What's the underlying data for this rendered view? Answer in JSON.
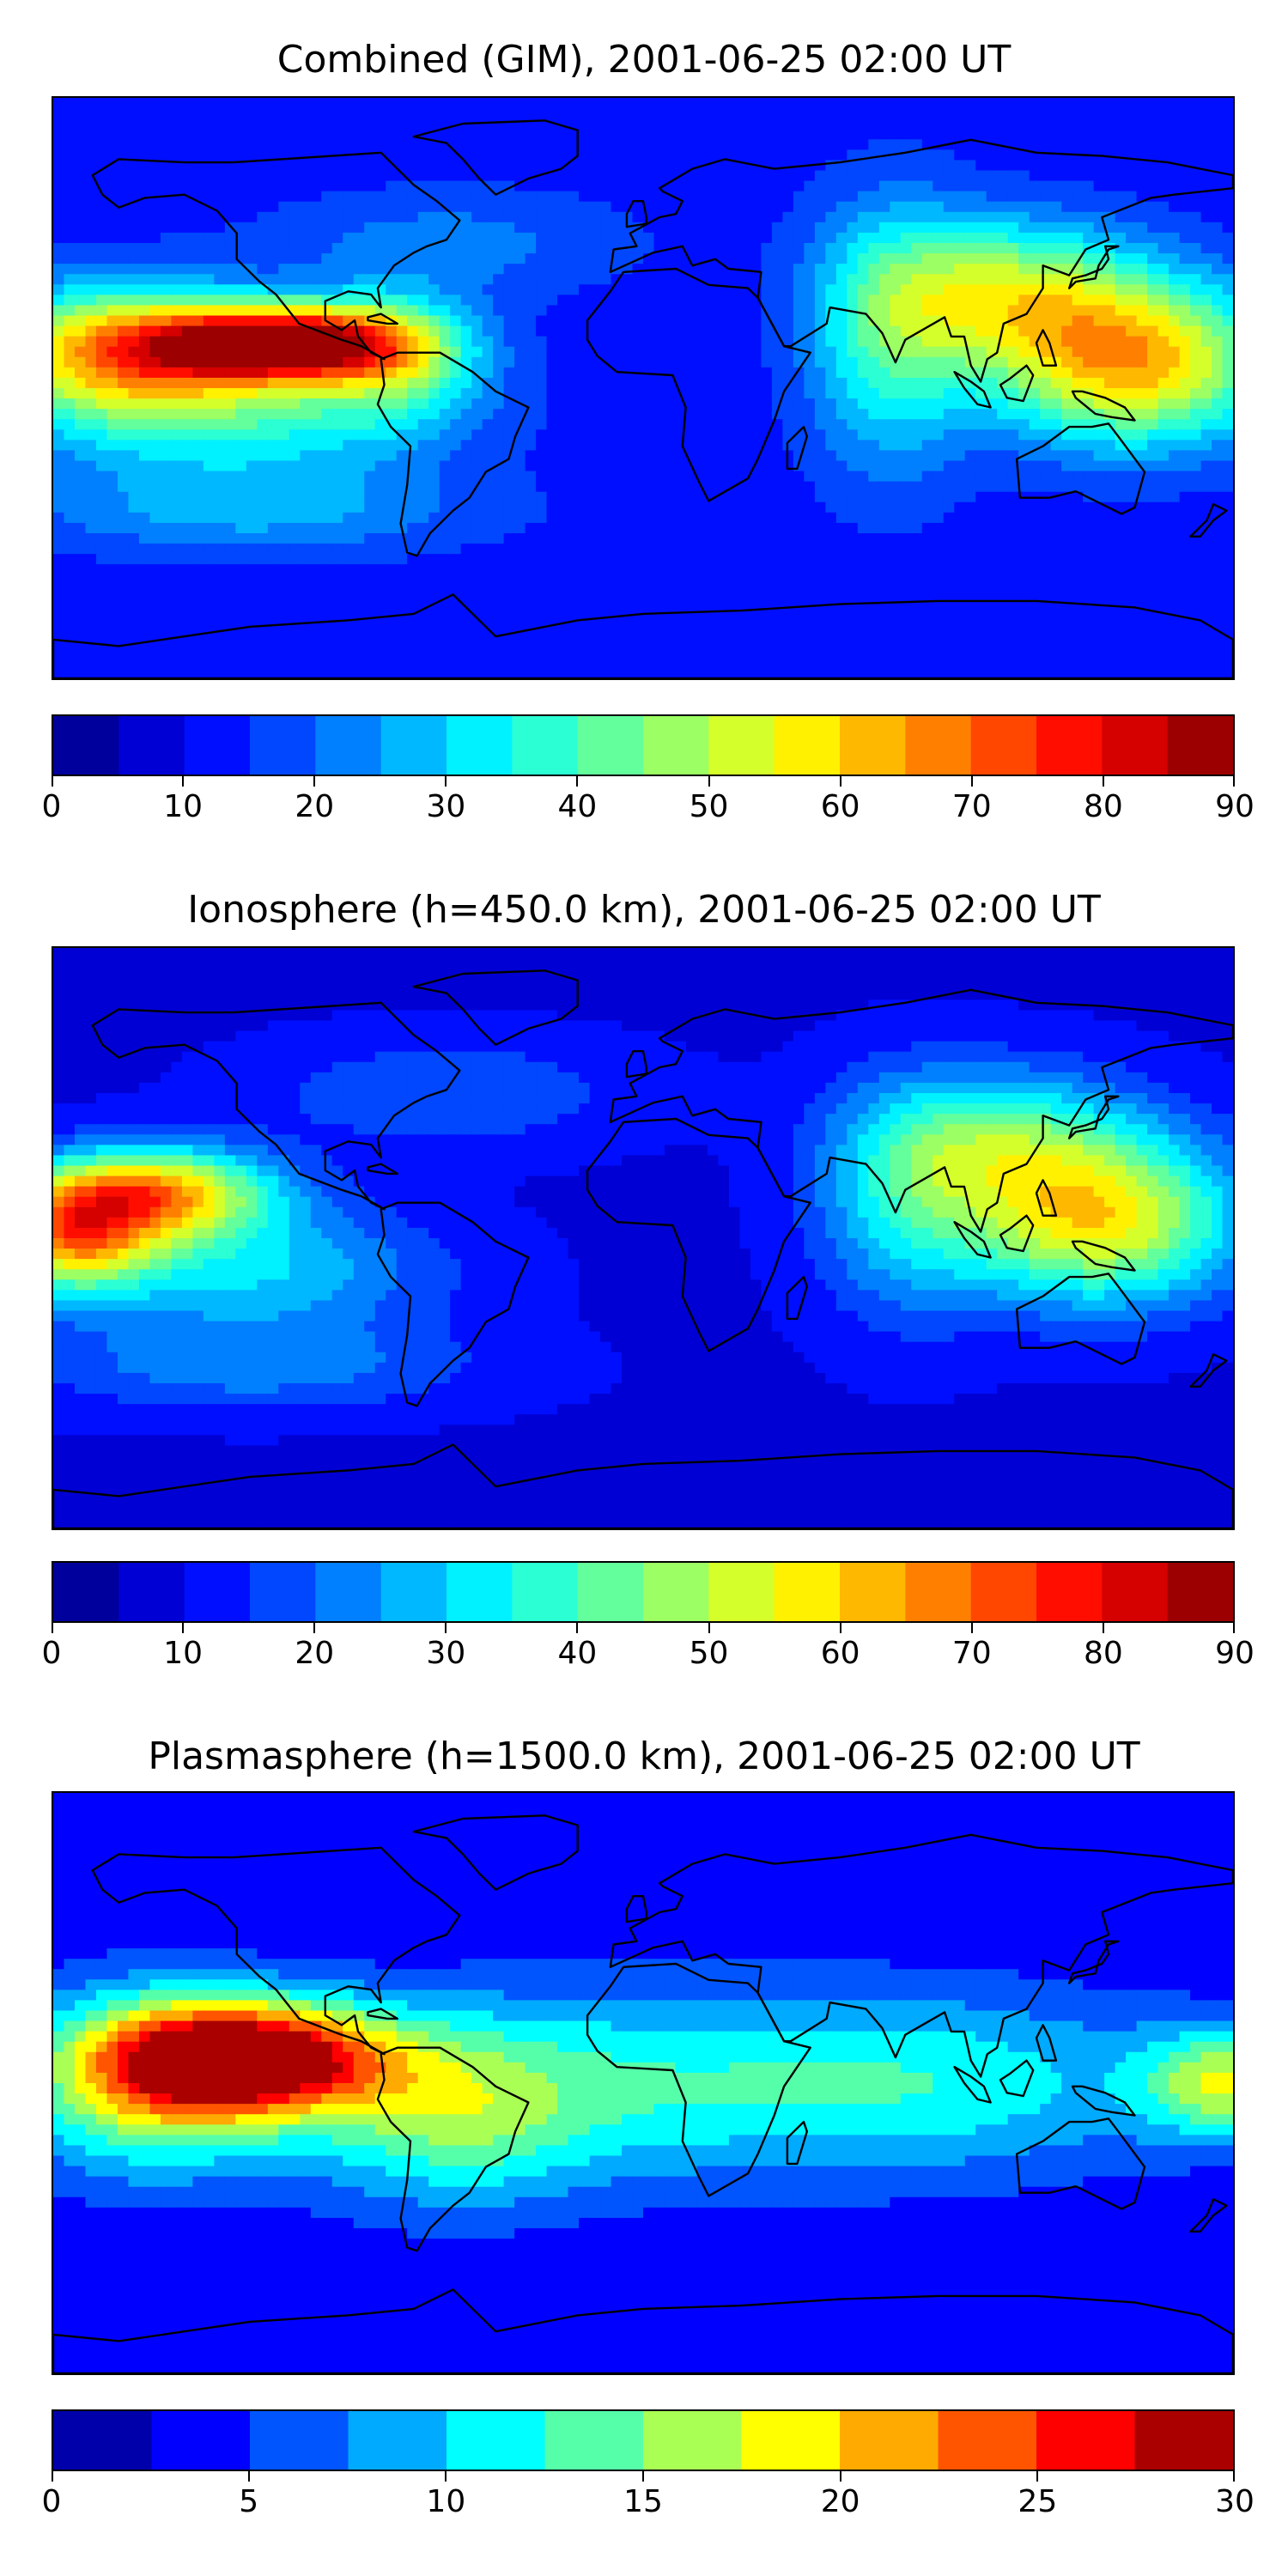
{
  "chart_data": [
    {
      "type": "heatmap",
      "title": "Combined (GIM), 2001-06-25 02:00 UT",
      "map": "world coastlines, equirectangular, longitude -180 to 180",
      "colorbar": {
        "min": 0,
        "max": 90,
        "step": 5,
        "ticks": [
          0,
          10,
          20,
          30,
          40,
          50,
          60,
          70,
          80,
          90
        ],
        "tick_labels": [
          "0",
          "10",
          "20",
          "30",
          "40",
          "50",
          "60",
          "70",
          "80",
          "90"
        ]
      },
      "field": {
        "background": 12,
        "features": [
          {
            "lon": -110,
            "lat": 14,
            "value": 86,
            "slon": 26,
            "slat": 8
          },
          {
            "lon": -160,
            "lat": 12,
            "value": 60,
            "slon": 30,
            "slat": 14
          },
          {
            "lon": -125,
            "lat": -8,
            "value": 35,
            "slon": 45,
            "slat": 14
          },
          {
            "lon": 150,
            "lat": 8,
            "value": 62,
            "slon": 30,
            "slat": 18
          },
          {
            "lon": 110,
            "lat": 30,
            "value": 45,
            "slon": 28,
            "slat": 16
          },
          {
            "lon": 75,
            "lat": 15,
            "value": 35,
            "slon": 18,
            "slat": 30
          },
          {
            "lon": -75,
            "lat": 10,
            "value": 38,
            "slon": 18,
            "slat": 14
          },
          {
            "lon": -60,
            "lat": 45,
            "value": 22,
            "slon": 40,
            "slat": 12
          },
          {
            "lon": -120,
            "lat": -38,
            "value": 26,
            "slon": 50,
            "slat": 10
          }
        ]
      }
    },
    {
      "type": "heatmap",
      "title": "Ionosphere  (h=450.0 km), 2001-06-25 02:00 UT",
      "map": "world coastlines, equirectangular, longitude -180 to 180",
      "colorbar": {
        "min": 0,
        "max": 90,
        "step": 5,
        "ticks": [
          0,
          10,
          20,
          30,
          40,
          50,
          60,
          70,
          80,
          90
        ],
        "tick_labels": [
          "0",
          "10",
          "20",
          "30",
          "40",
          "50",
          "60",
          "70",
          "80",
          "90"
        ]
      },
      "field": {
        "background": 9,
        "features": [
          {
            "lon": -150,
            "lat": 14,
            "value": 62,
            "slon": 26,
            "slat": 10
          },
          {
            "lon": -175,
            "lat": 0,
            "value": 55,
            "slon": 18,
            "slat": 12
          },
          {
            "lon": -120,
            "lat": -10,
            "value": 30,
            "slon": 40,
            "slat": 14
          },
          {
            "lon": 140,
            "lat": 5,
            "value": 55,
            "slon": 30,
            "slat": 18
          },
          {
            "lon": 110,
            "lat": 30,
            "value": 36,
            "slon": 30,
            "slat": 16
          },
          {
            "lon": 80,
            "lat": 10,
            "value": 28,
            "slon": 20,
            "slat": 25
          },
          {
            "lon": -60,
            "lat": 45,
            "value": 20,
            "slon": 40,
            "slat": 12
          },
          {
            "lon": -120,
            "lat": -40,
            "value": 22,
            "slon": 50,
            "slat": 10
          }
        ]
      }
    },
    {
      "type": "heatmap",
      "title": "Plasmasphere (h=1500.0 km), 2001-06-25 02:00 UT",
      "map": "world coastlines, equirectangular, longitude -180 to 180",
      "colorbar": {
        "min": 0,
        "max": 30,
        "step": 2.5,
        "ticks": [
          0,
          5,
          10,
          15,
          20,
          25,
          30
        ],
        "tick_labels": [
          "0",
          "5",
          "10",
          "15",
          "20",
          "25",
          "30"
        ]
      },
      "field": {
        "background": 3,
        "features": [
          {
            "lon": -120,
            "lat": 8,
            "value": 28,
            "slon": 30,
            "slat": 12
          },
          {
            "lon": -150,
            "lat": 0,
            "value": 17,
            "slon": 30,
            "slat": 20
          },
          {
            "lon": 0,
            "lat": 0,
            "value": 11,
            "slon": 60,
            "slat": 22
          },
          {
            "lon": 100,
            "lat": 0,
            "value": 10,
            "slon": 50,
            "slat": 20
          },
          {
            "lon": 178,
            "lat": 0,
            "value": 16,
            "slon": 18,
            "slat": 12
          },
          {
            "lon": -60,
            "lat": -10,
            "value": 12,
            "slon": 30,
            "slat": 20
          }
        ]
      }
    }
  ]
}
